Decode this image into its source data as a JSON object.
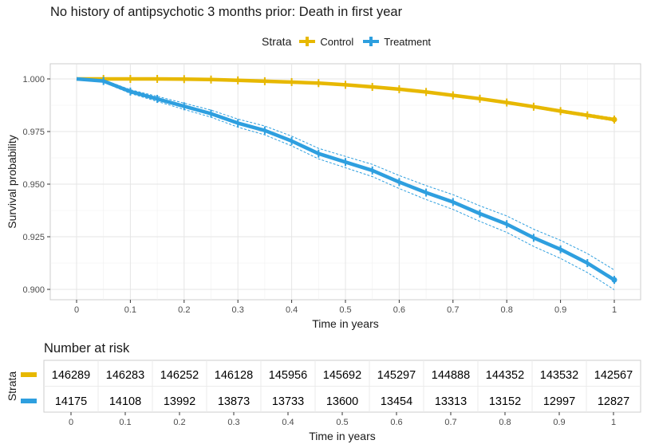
{
  "chart_data": [
    {
      "type": "line",
      "title": "No history of antipsychotic 3 months prior: Death in first year",
      "xlabel": "Time in years",
      "ylabel": "Survival probability",
      "xlim": [
        0,
        1
      ],
      "ylim": [
        0.9,
        1.0
      ],
      "x_ticks": [
        "0",
        "0.1",
        "0.2",
        "0.3",
        "0.4",
        "0.5",
        "0.6",
        "0.7",
        "0.8",
        "0.9",
        "1"
      ],
      "y_ticks": [
        "0.900",
        "0.925",
        "0.950",
        "0.975",
        "1.000"
      ],
      "legend_title": "Strata",
      "legend_position": "top",
      "grid": true,
      "x": [
        0,
        0.05,
        0.1,
        0.15,
        0.2,
        0.25,
        0.3,
        0.35,
        0.4,
        0.45,
        0.5,
        0.55,
        0.6,
        0.65,
        0.7,
        0.75,
        0.8,
        0.85,
        0.9,
        0.95,
        1.0
      ],
      "series": [
        {
          "name": "Control",
          "color": "#E7B800",
          "values": [
            1.0,
            1.0,
            1.0,
            1.0,
            0.9999,
            0.9997,
            0.9993,
            0.9989,
            0.9985,
            0.998,
            0.9972,
            0.9962,
            0.9951,
            0.9938,
            0.9922,
            0.9906,
            0.9888,
            0.9868,
            0.9847,
            0.9827,
            0.9807
          ],
          "ci_lower": [
            1.0,
            1.0,
            1.0,
            1.0,
            0.9998,
            0.9996,
            0.9992,
            0.9987,
            0.9983,
            0.9978,
            0.9969,
            0.9959,
            0.9947,
            0.9934,
            0.9918,
            0.9901,
            0.9883,
            0.9862,
            0.9841,
            0.982,
            0.98
          ],
          "ci_upper": [
            1.0,
            1.0,
            1.0,
            1.0,
            1.0,
            0.9998,
            0.9994,
            0.9991,
            0.9987,
            0.9982,
            0.9975,
            0.9965,
            0.9955,
            0.9942,
            0.9926,
            0.9911,
            0.9893,
            0.9874,
            0.9853,
            0.9834,
            0.9814
          ]
        },
        {
          "name": "Treatment",
          "color": "#2E9FDF",
          "values": [
            1.0,
            0.999,
            0.994,
            0.9905,
            0.987,
            0.9835,
            0.979,
            0.9755,
            0.9705,
            0.9645,
            0.9605,
            0.9565,
            0.951,
            0.946,
            0.9415,
            0.936,
            0.931,
            0.9245,
            0.919,
            0.9125,
            0.9045
          ],
          "ci_lower": [
            1.0,
            0.9984,
            0.9931,
            0.9893,
            0.9855,
            0.9818,
            0.9771,
            0.9734,
            0.9682,
            0.962,
            0.9578,
            0.9536,
            0.9479,
            0.9427,
            0.938,
            0.9323,
            0.9271,
            0.9204,
            0.9147,
            0.908,
            0.8998
          ],
          "ci_upper": [
            1.0,
            0.9996,
            0.9949,
            0.9917,
            0.9885,
            0.9852,
            0.9809,
            0.9776,
            0.9728,
            0.967,
            0.9632,
            0.9594,
            0.9541,
            0.9493,
            0.945,
            0.9397,
            0.9349,
            0.9286,
            0.9233,
            0.917,
            0.9092
          ]
        }
      ]
    },
    {
      "type": "table",
      "title": "Number at risk",
      "xlabel": "Time in years",
      "ylabel": "Strata",
      "x_ticks": [
        "0",
        "0.1",
        "0.2",
        "0.3",
        "0.4",
        "0.5",
        "0.6",
        "0.7",
        "0.8",
        "0.9",
        "1"
      ],
      "rows": [
        {
          "name": "Control",
          "color": "#E7B800",
          "values": [
            146289,
            146283,
            146252,
            146128,
            145956,
            145692,
            145297,
            144888,
            144352,
            143532,
            142567
          ]
        },
        {
          "name": "Treatment",
          "color": "#2E9FDF",
          "values": [
            14175,
            14108,
            13992,
            13873,
            13733,
            13600,
            13454,
            13313,
            13152,
            12997,
            12827
          ]
        }
      ]
    }
  ],
  "legend": {
    "title": "Strata",
    "items": [
      {
        "label": "Control",
        "color": "#E7B800"
      },
      {
        "label": "Treatment",
        "color": "#2E9FDF"
      }
    ]
  }
}
